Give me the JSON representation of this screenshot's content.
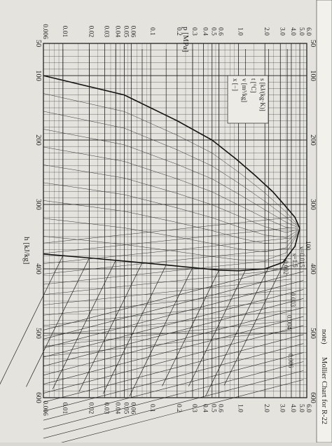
{
  "chart_data": {
    "type": "line",
    "title": "Mollier Chart for R-22",
    "title_prefix": "note)",
    "x_axis": {
      "label": "h [kJ/kg]",
      "range": [
        50,
        600
      ],
      "ticks": [
        "50",
        "100",
        "200",
        "300",
        "400",
        "500",
        "600"
      ],
      "tick_values": [
        50,
        100,
        200,
        300,
        400,
        500,
        600
      ]
    },
    "y_axis": {
      "label": "p [MPa]",
      "scale": "log",
      "range": [
        0.006,
        6.0
      ],
      "ticks": [
        "0.006",
        "0.01",
        "0.02",
        "0.03",
        "0.04",
        "0.05",
        "0.06",
        "0.1",
        "0.2",
        "0.3",
        "0.4",
        "0.5",
        "0.6",
        "1.0",
        "2.0",
        "3.0",
        "4.0",
        "5.0",
        "6.0"
      ],
      "tick_values": [
        0.006,
        0.01,
        0.02,
        0.03,
        0.04,
        0.05,
        0.06,
        0.1,
        0.2,
        0.3,
        0.4,
        0.5,
        0.6,
        1.0,
        2.0,
        3.0,
        4.0,
        5.0,
        6.0
      ]
    },
    "legend": {
      "placement": "top-right",
      "entries": [
        "s [kJ/(kg·K)]",
        "t [°C]",
        "v [m³/kg]",
        "x [−]"
      ]
    },
    "annotations": [
      "v=0.015",
      "s=1.5",
      "0.002",
      "0.003",
      "0.004",
      "0.006",
      "100"
    ],
    "saturation_dome": {
      "liquid": [
        [
          100,
          0.006
        ],
        [
          130,
          0.05
        ],
        [
          170,
          0.2
        ],
        [
          200,
          0.5
        ],
        [
          230,
          0.95
        ],
        [
          255,
          1.55
        ],
        [
          280,
          2.45
        ],
        [
          300,
          3.3
        ],
        [
          320,
          4.4
        ],
        [
          337,
          4.99
        ]
      ],
      "vapor": [
        [
          337,
          4.99
        ],
        [
          365,
          4.4
        ],
        [
          390,
          3.2
        ],
        [
          400,
          2.0
        ],
        [
          403,
          1.0
        ],
        [
          402,
          0.6
        ],
        [
          398,
          0.3
        ],
        [
          394,
          0.15
        ],
        [
          388,
          0.05
        ],
        [
          383,
          0.02
        ],
        [
          377,
          0.006
        ]
      ]
    },
    "grid": true
  }
}
